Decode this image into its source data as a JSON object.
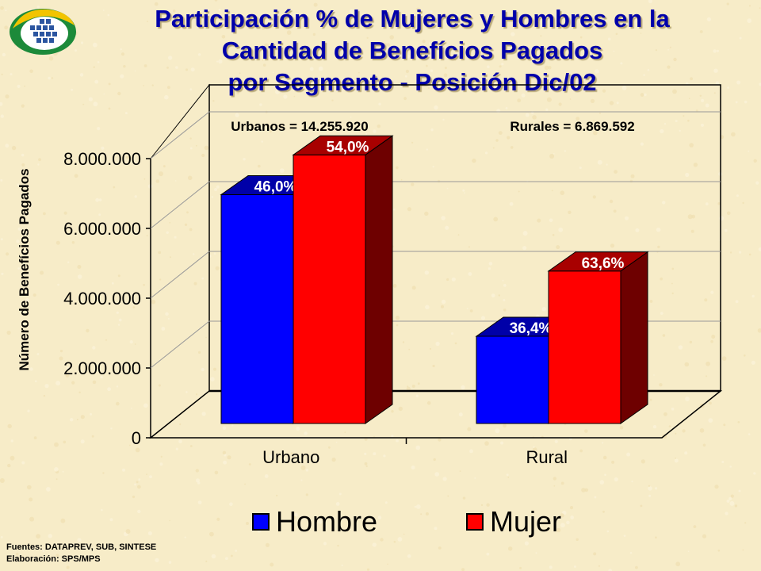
{
  "title": {
    "line1": "Participación % de Mujeres y Hombres en la",
    "line2": "Cantidad de Benefícios Pagados",
    "line3": "por Segmento - Posición Dic/02"
  },
  "footer": {
    "line1": "Fuentes: DATAPREV, SUB, SINTESE",
    "line2": "Elaboración: SPS/MPS"
  },
  "colors": {
    "title": "#0000aa",
    "hombre": "#0000ff",
    "mujer": "#ff0000",
    "background": "#f7ecc8"
  },
  "chart_data": {
    "type": "bar",
    "categories": [
      "Urbano",
      "Rural"
    ],
    "series": [
      {
        "name": "Hombre",
        "values": [
          6557723,
          2500532
        ],
        "labels": [
          "46,0%",
          "36,4%"
        ],
        "color": "#0000ff"
      },
      {
        "name": "Mujer",
        "values": [
          7698197,
          4369060
        ],
        "labels": [
          "54,0%",
          "63,6%"
        ],
        "color": "#ff0000"
      }
    ],
    "annotations": [
      "Urbanos = 14.255.920",
      "Rurales = 6.869.592"
    ],
    "xlabel": "",
    "ylabel": "Número de Benefícios Pagados",
    "ylim": [
      0,
      8000000
    ],
    "yticks": [
      0,
      2000000,
      4000000,
      6000000,
      8000000
    ],
    "ytick_labels": [
      "0",
      "2.000.000",
      "4.000.000",
      "6.000.000",
      "8.000.000"
    ],
    "legend": "bottom",
    "grid": true,
    "style": "3d"
  }
}
